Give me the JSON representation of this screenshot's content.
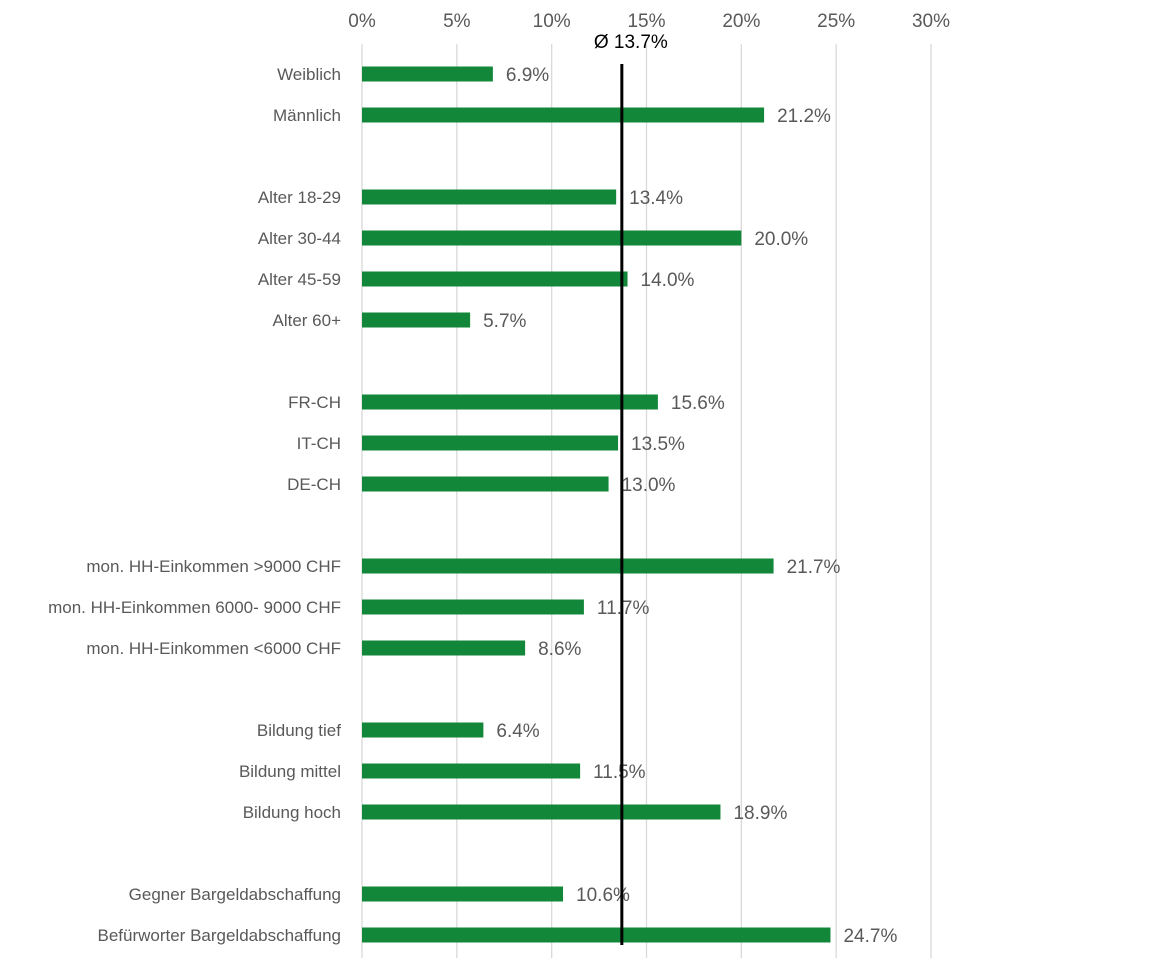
{
  "chart_data": {
    "type": "bar",
    "orientation": "horizontal",
    "xlim": [
      0,
      30
    ],
    "x_ticks": [
      0,
      5,
      10,
      15,
      20,
      25,
      30
    ],
    "x_tick_labels": [
      "0%",
      "5%",
      "10%",
      "15%",
      "20%",
      "25%",
      "30%"
    ],
    "x_axis_position": "top",
    "grid": true,
    "bar_color": "#12873A",
    "groups": [
      {
        "categories": [
          "Weiblich",
          "Männlich"
        ],
        "values": [
          6.9,
          21.2
        ],
        "labels": [
          "6.9%",
          "21.2%"
        ]
      },
      {
        "categories": [
          "Alter 18-29",
          "Alter 30-44",
          "Alter 45-59",
          "Alter 60+"
        ],
        "values": [
          13.4,
          20.0,
          14.0,
          5.7
        ],
        "labels": [
          "13.4%",
          "20.0%",
          "14.0%",
          "5.7%"
        ]
      },
      {
        "categories": [
          "FR-CH",
          "IT-CH",
          "DE-CH"
        ],
        "values": [
          15.6,
          13.5,
          13.0
        ],
        "labels": [
          "15.6%",
          "13.5%",
          "13.0%"
        ]
      },
      {
        "categories": [
          "mon. HH-Einkommen >9000 CHF",
          "mon. HH-Einkommen 6000- 9000 CHF",
          "mon. HH-Einkommen <6000 CHF"
        ],
        "values": [
          21.7,
          11.7,
          8.6
        ],
        "labels": [
          "21.7%",
          "11.7%",
          "8.6%"
        ]
      },
      {
        "categories": [
          "Bildung tief",
          "Bildung mittel",
          "Bildung hoch"
        ],
        "values": [
          6.4,
          11.5,
          18.9
        ],
        "labels": [
          "6.4%",
          "11.5%",
          "18.9%"
        ]
      },
      {
        "categories": [
          "Gegner Bargeldabschaffung",
          "Befürworter Bargeldabschaffung"
        ],
        "values": [
          10.6,
          24.7
        ],
        "labels": [
          "10.6%",
          "24.7%"
        ]
      }
    ],
    "average": {
      "value": 13.7,
      "label": "Ø 13.7%",
      "color": "#000000"
    }
  }
}
